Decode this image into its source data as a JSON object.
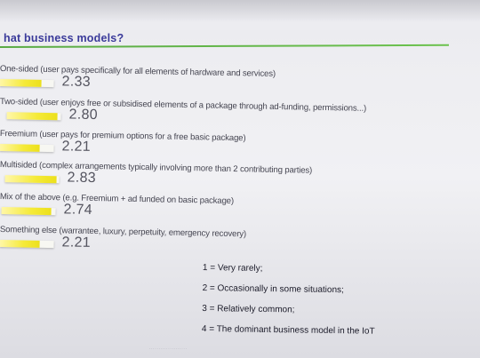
{
  "slide": {
    "title": "hat business models?"
  },
  "questions": [
    {
      "label": "One-sided (user pays specifically for all elements of hardware and services)",
      "score": "2.33",
      "level": 0.777
    },
    {
      "label": "Two-sided (user enjoys free or subsidised elements of a package through ad-funding, permissions...)",
      "score": "2.80",
      "level": 0.933
    },
    {
      "label": "Freemium (user pays for premium options for a free basic package)",
      "score": "2.21",
      "level": 0.737
    },
    {
      "label": "Multisided (complex arrangements typically involving more than 2 contributing parties)",
      "score": "2.83",
      "level": 0.943
    },
    {
      "label": "Mix of the above (e.g. Freemium + ad funded on basic package)",
      "score": "2.74",
      "level": 0.913
    },
    {
      "label": "Something else (warrantee, luxury, perpetuity, emergency recovery)",
      "score": "2.21",
      "level": 0.737
    }
  ],
  "scale_max": 3,
  "legend": [
    "1 = Very rarely;",
    "2 = Occasionally in some situations;",
    "3 = Relatively common;",
    "4 = The dominant business model in the IoT"
  ],
  "colors": {
    "title": "#3a3a9a",
    "rule": "#5aaa44",
    "bar": "#ece01c"
  }
}
